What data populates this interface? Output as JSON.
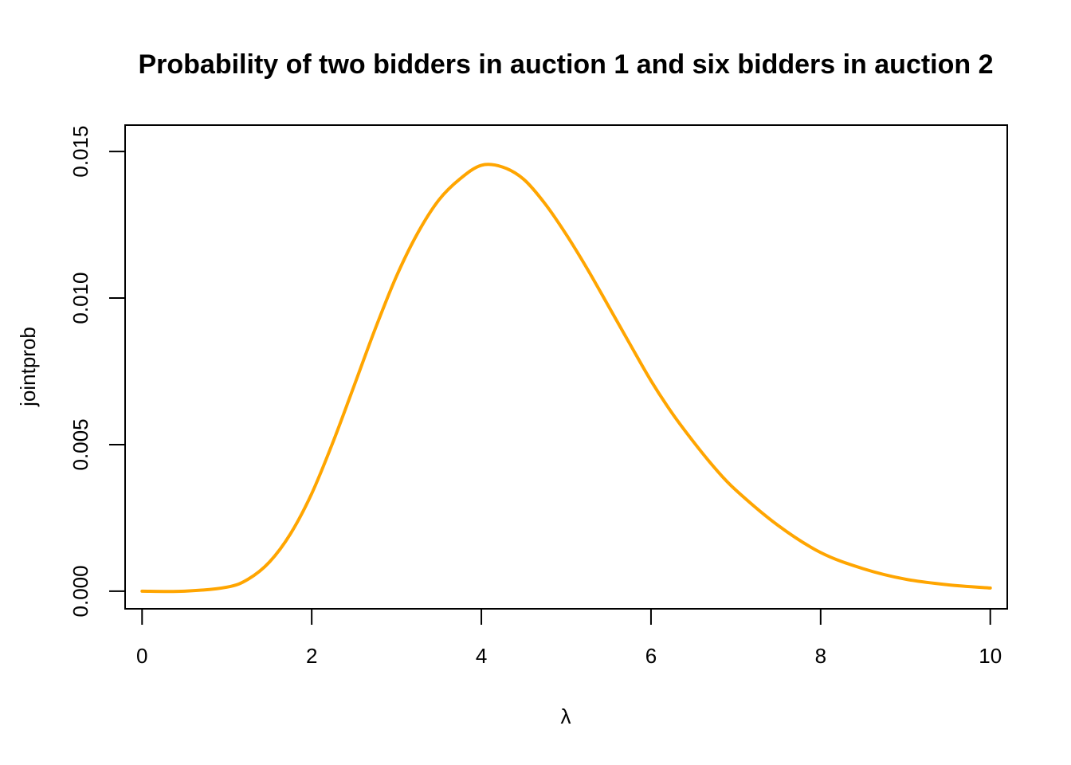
{
  "chart_data": {
    "type": "line",
    "title": "Probability of two bidders in auction 1 and six bidders in auction 2",
    "xlabel": "λ",
    "ylabel": "jointprob",
    "xlim": [
      -0.2,
      10.2
    ],
    "ylim": [
      -0.0006,
      0.0159
    ],
    "xticks": [
      0,
      2,
      4,
      6,
      8,
      10
    ],
    "xtick_labels": [
      "0",
      "2",
      "4",
      "6",
      "8",
      "10"
    ],
    "yticks": [
      0,
      0.005,
      0.01,
      0.015
    ],
    "ytick_labels": [
      "0.000",
      "0.005",
      "0.010",
      "0.015"
    ],
    "grid": false,
    "series": [
      {
        "color": "#FFA500",
        "x": [
          0,
          0.5,
          1,
          1.25,
          1.5,
          1.75,
          2,
          2.25,
          2.5,
          2.75,
          3,
          3.25,
          3.5,
          3.75,
          4,
          4.25,
          4.5,
          4.75,
          5,
          5.25,
          5.5,
          5.75,
          6,
          6.25,
          6.5,
          6.75,
          7,
          7.5,
          8,
          8.5,
          9,
          9.5,
          10
        ],
        "y": [
          0,
          6.1e-07,
          0.00014,
          0.00041,
          0.00099,
          0.00196,
          0.00333,
          0.00508,
          0.00701,
          0.00896,
          0.01075,
          0.01222,
          0.01335,
          0.01407,
          0.01453,
          0.01447,
          0.01405,
          0.01322,
          0.01217,
          0.01099,
          0.00972,
          0.00844,
          0.00718,
          0.00607,
          0.0051,
          0.00421,
          0.00345,
          0.00224,
          0.00132,
          0.00077,
          0.00041,
          0.00022,
          0.00011
        ]
      }
    ]
  }
}
